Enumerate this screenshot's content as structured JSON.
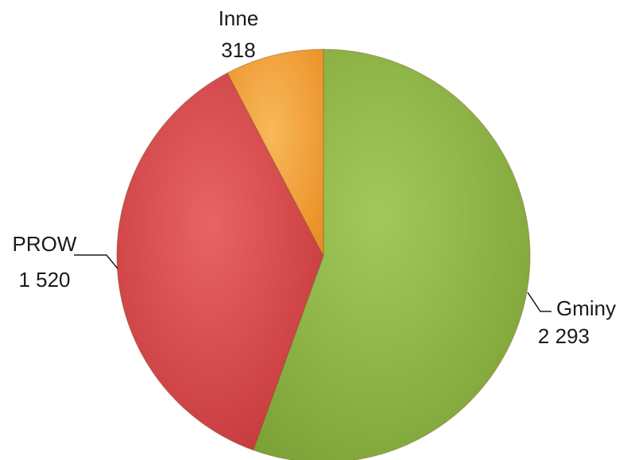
{
  "chart_data": {
    "type": "pie",
    "title": "",
    "categories": [
      "Gminy",
      "PROW",
      "Inne"
    ],
    "values": [
      2293,
      1520,
      318
    ],
    "value_labels": [
      "2 293",
      "1 520",
      "318"
    ],
    "colors": [
      "#8DB23F",
      "#D84244",
      "#F4A032"
    ],
    "start_angle_deg": 0,
    "direction": "clockwise",
    "legend": "none",
    "data_labels": "outside with category name and value"
  }
}
